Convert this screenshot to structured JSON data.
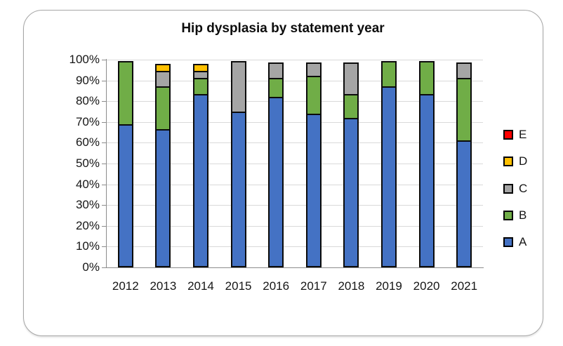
{
  "chart_data": {
    "type": "bar",
    "subtype": "percent-stacked-column",
    "title": "Hip dysplasia by statement year",
    "categories": [
      "2012",
      "2013",
      "2014",
      "2015",
      "2016",
      "2017",
      "2018",
      "2019",
      "2020",
      "2021"
    ],
    "series": [
      {
        "name": "A",
        "color": "#4472C4",
        "values": [
          69,
          66.5,
          83.5,
          75,
          82,
          74,
          72,
          87,
          83.5,
          61
        ]
      },
      {
        "name": "B",
        "color": "#70AD47",
        "values": [
          31,
          21.5,
          8.5,
          0,
          10,
          19,
          12,
          13,
          16.5,
          31
        ]
      },
      {
        "name": "C",
        "color": "#A5A5A5",
        "values": [
          0,
          8,
          4,
          25,
          8,
          7,
          16,
          0,
          0,
          8
        ]
      },
      {
        "name": "D",
        "color": "#FFC000",
        "values": [
          0,
          4,
          4,
          0,
          0,
          0,
          0,
          0,
          0,
          0
        ]
      },
      {
        "name": "E",
        "color": "#FF0000",
        "values": [
          0,
          0,
          0,
          0,
          0,
          0,
          0,
          0,
          0,
          0
        ]
      }
    ],
    "y_axis": {
      "min": 0,
      "max": 100,
      "tick_step": 10,
      "ticks": [
        "0%",
        "10%",
        "20%",
        "30%",
        "40%",
        "50%",
        "60%",
        "70%",
        "80%",
        "90%",
        "100%"
      ],
      "grid": true
    },
    "legend": {
      "position": "right",
      "order": [
        "E",
        "D",
        "C",
        "B",
        "A"
      ]
    }
  }
}
